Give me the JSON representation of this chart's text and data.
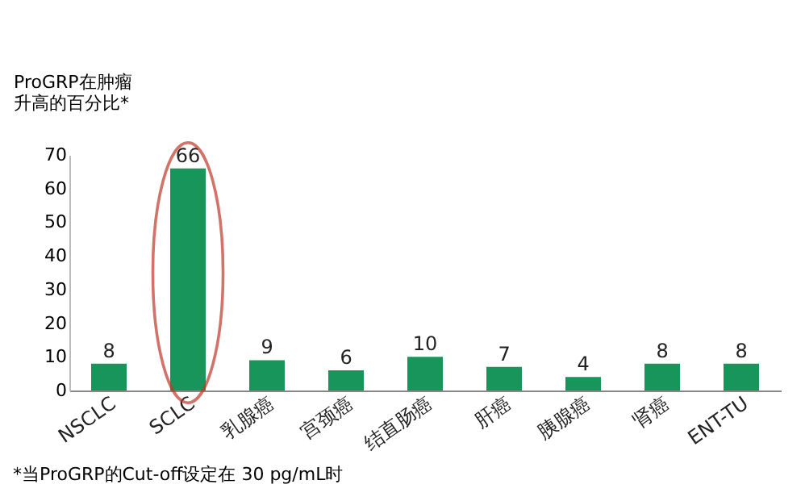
{
  "chart_data": {
    "type": "bar",
    "ylabel": "ProGRP在肿瘤升高的百分比*",
    "categories": [
      "NSCLC",
      "SCLC",
      "乳腺癌",
      "宫颈癌",
      "结直肠癌",
      "肝癌",
      "胰腺癌",
      "肾癌",
      "ENT-TU"
    ],
    "values": [
      8,
      66,
      9,
      6,
      10,
      7,
      4,
      8,
      8
    ],
    "color": "#17955a",
    "ylim": [
      0,
      70
    ],
    "yticks": [
      0,
      10,
      20,
      30,
      40,
      50,
      60,
      70
    ],
    "data_labels": true,
    "grid": false,
    "annotations": [
      "*当ProGRP的Cut-off设定在 30 pg/mL时"
    ]
  }
}
